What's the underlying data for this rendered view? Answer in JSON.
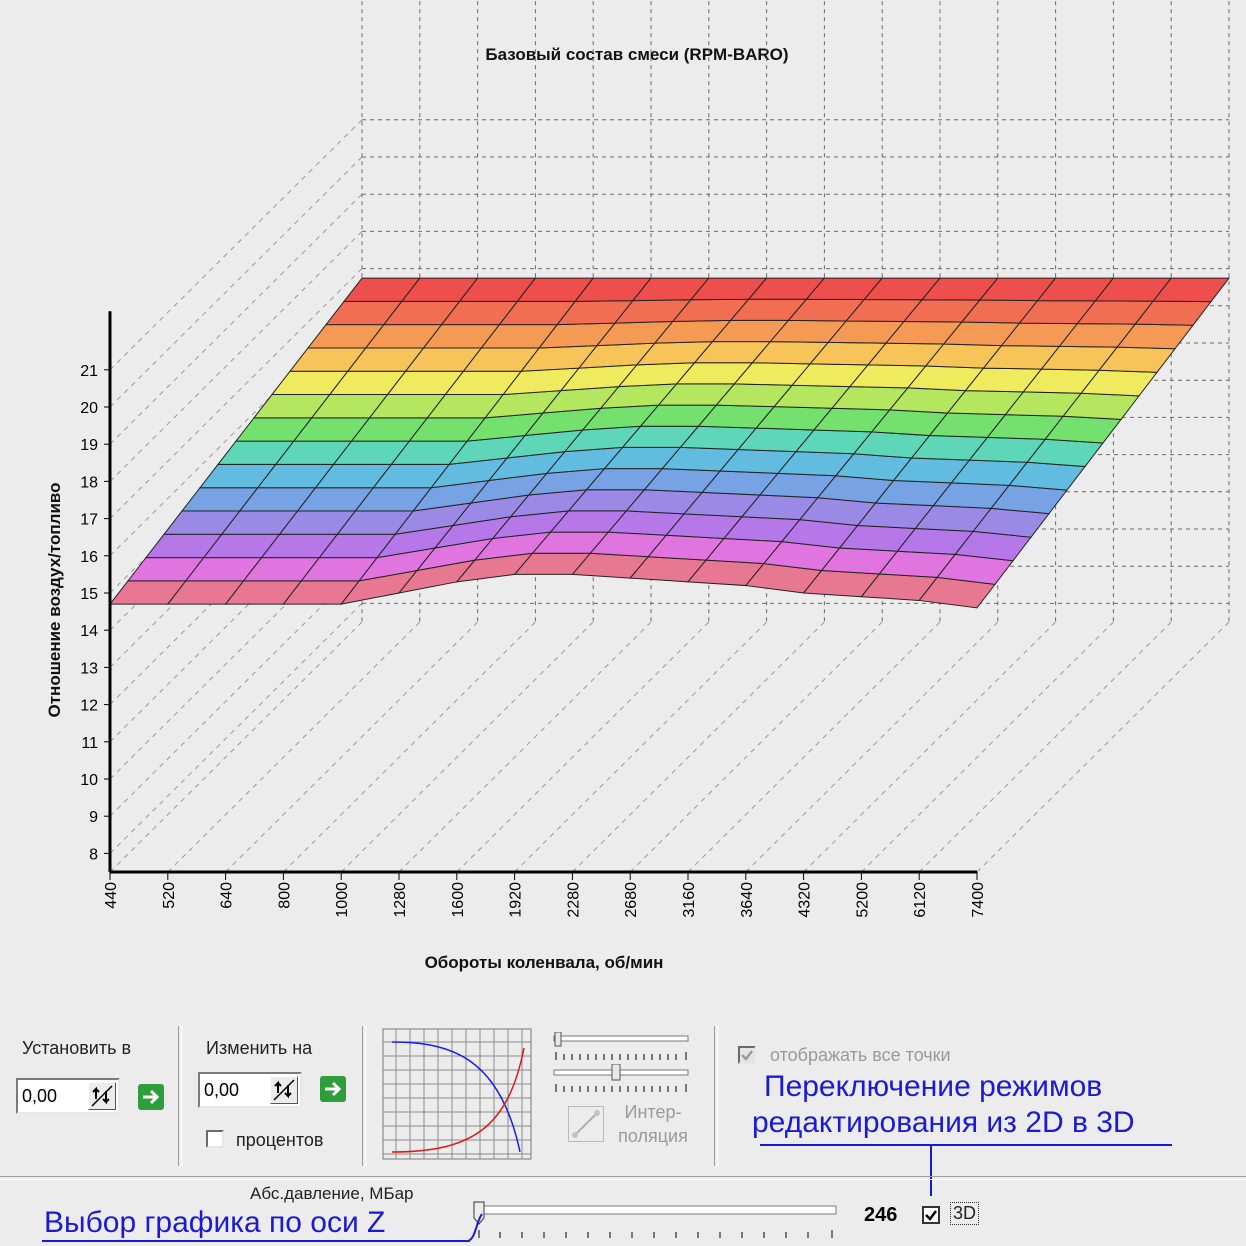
{
  "chart_data": {
    "type": "surface3d",
    "title": "Базовый состав смеси (RPM-BARO)",
    "xlabel": "Обороты коленвала, об/мин",
    "ylabel": "Отношение воздух/топливо",
    "x_ticks": [
      "440",
      "520",
      "640",
      "800",
      "1000",
      "1280",
      "1600",
      "1920",
      "2280",
      "2680",
      "3160",
      "3640",
      "4320",
      "5200",
      "6120",
      "7400"
    ],
    "y_ticks": [
      "8",
      "9",
      "10",
      "11",
      "12",
      "13",
      "14",
      "15",
      "16",
      "17",
      "18",
      "19",
      "20",
      "21"
    ],
    "ylim": [
      7.5,
      21.5
    ],
    "grid": true,
    "front_row_values": [
      14.7,
      14.7,
      14.7,
      14.7,
      14.7,
      15.0,
      15.3,
      15.5,
      15.5,
      15.4,
      15.3,
      15.2,
      15.0,
      14.9,
      14.8,
      14.6
    ],
    "back_row_values": [
      19.5,
      19.5,
      19.5,
      19.5,
      19.5,
      19.5,
      19.5,
      19.5,
      19.5,
      19.5,
      19.5,
      19.5,
      19.5,
      19.5,
      19.5,
      19.5
    ],
    "colors": [
      "#e87892",
      "#e075e0",
      "#b678e8",
      "#9a8ae6",
      "#77a2e4",
      "#62bce0",
      "#5ed6b8",
      "#74e06e",
      "#b4e660",
      "#f0ea5e",
      "#f6c458",
      "#f49a54",
      "#f26e52",
      "#ee4e4c"
    ]
  },
  "controls": {
    "set_to_label": "Установить в",
    "set_to_value": "0,00",
    "change_by_label": "Изменить на",
    "change_by_value": "0,00",
    "percent_label": "процентов",
    "interp_label_line1": "Интер-",
    "interp_label_line2": "поляция",
    "show_all_points_label": "отображать все точки",
    "z_axis_label": "Абс.давление, МБар",
    "z_value": "246",
    "z_slider_fraction": 0.0,
    "mode_3d_label": "3D"
  },
  "annotations": {
    "mode_switch_line1": "Переключение  режимов",
    "mode_switch_line2": "редактирования из 2D в 3D",
    "z_select": "Выбор графика по оси Z"
  }
}
